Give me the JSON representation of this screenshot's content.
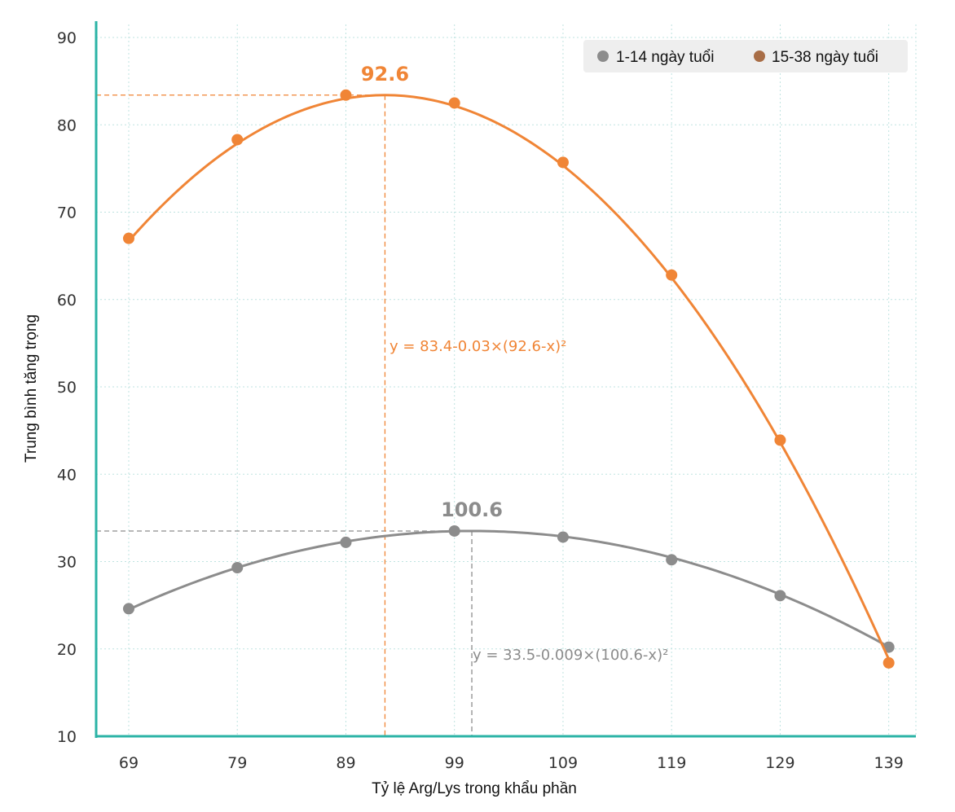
{
  "chart_data": {
    "type": "line",
    "title": "",
    "xlabel": "Tỷ lệ Arg/Lys trong khẩu phần",
    "ylabel": "Trung bình tăng trọng",
    "x": [
      69,
      79,
      89,
      99,
      109,
      119,
      129,
      139
    ],
    "xlim": [
      66,
      141.5
    ],
    "ylim": [
      10,
      90
    ],
    "yticks": [
      10,
      20,
      30,
      40,
      50,
      60,
      70,
      80,
      90
    ],
    "grid": true,
    "legend_position": "top-right",
    "series": [
      {
        "name": "1-14 ngày tuổi",
        "color": "#8c8c8c",
        "values": [
          24.6,
          29.3,
          32.2,
          33.5,
          32.8,
          30.2,
          26.1,
          20.2
        ],
        "fit": {
          "a": 33.5,
          "b": 0.009,
          "c": 100.6
        },
        "peak_label": "100.6",
        "equation": "y = 33.5-0.009×(100.6-x)²"
      },
      {
        "name": "15-38 ngày tuổi",
        "color": "#f08536",
        "legend_color": "#a86d46",
        "values": [
          67.0,
          78.3,
          83.4,
          82.5,
          75.7,
          62.8,
          43.9,
          18.4
        ],
        "fit": {
          "a": 83.4,
          "b": 0.03,
          "c": 92.6
        },
        "peak_label": "92.6",
        "equation": "y = 83.4-0.03×(92.6-x)²"
      }
    ]
  }
}
